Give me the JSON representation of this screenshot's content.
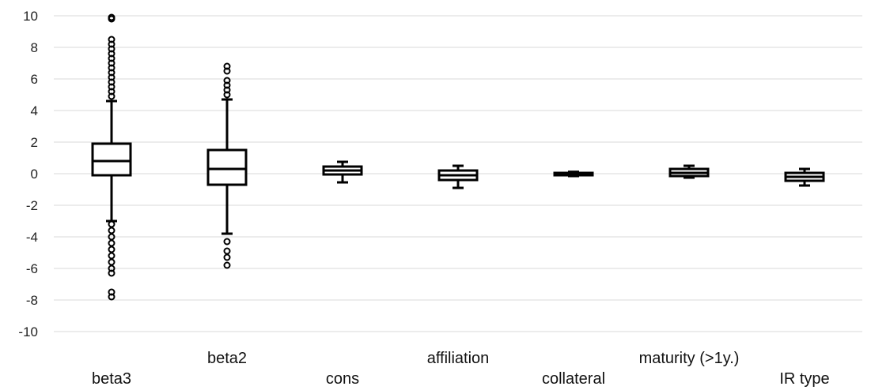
{
  "chart_data": {
    "type": "box",
    "title": "",
    "xlabel": "",
    "ylabel": "",
    "ylim": [
      -10,
      10
    ],
    "ytick_step": 2,
    "grid": true,
    "legend": "none",
    "colors": {
      "grid": "#d9d9d9",
      "box": "#000000",
      "box_fill": "#ffffff"
    },
    "categories": [
      "beta3",
      "beta2",
      "cons",
      "affiliation",
      "collateral",
      "maturity (>1y.)",
      "IR type"
    ],
    "boxes": [
      {
        "name": "beta3",
        "whisker_low": -3.0,
        "q1": -0.1,
        "median": 0.8,
        "q3": 1.9,
        "whisker_high": 4.6,
        "outliers": [
          4.9,
          5.2,
          5.5,
          5.8,
          6.1,
          6.4,
          6.7,
          7.0,
          7.3,
          7.6,
          7.9,
          8.2,
          8.5,
          9.8,
          9.9,
          -3.2,
          -3.6,
          -4.0,
          -4.4,
          -4.8,
          -5.2,
          -5.6,
          -6.0,
          -6.3,
          -7.5,
          -7.8
        ]
      },
      {
        "name": "beta2",
        "whisker_low": -3.8,
        "q1": -0.7,
        "median": 0.3,
        "q3": 1.5,
        "whisker_high": 4.7,
        "outliers": [
          5.0,
          5.3,
          5.6,
          5.9,
          6.5,
          6.8,
          -4.3,
          -4.9,
          -5.3,
          -5.8
        ]
      },
      {
        "name": "cons",
        "whisker_low": -0.55,
        "q1": -0.05,
        "median": 0.2,
        "q3": 0.45,
        "whisker_high": 0.75,
        "outliers": []
      },
      {
        "name": "affiliation",
        "whisker_low": -0.9,
        "q1": -0.4,
        "median": -0.1,
        "q3": 0.2,
        "whisker_high": 0.5,
        "outliers": []
      },
      {
        "name": "collateral",
        "whisker_low": -0.15,
        "q1": -0.1,
        "median": -0.05,
        "q3": 0.05,
        "whisker_high": 0.12,
        "outliers": []
      },
      {
        "name": "maturity (>1y.)",
        "whisker_low": -0.25,
        "q1": -0.15,
        "median": 0.05,
        "q3": 0.3,
        "whisker_high": 0.5,
        "outliers": []
      },
      {
        "name": "IR type",
        "whisker_low": -0.75,
        "q1": -0.45,
        "median": -0.2,
        "q3": 0.05,
        "whisker_high": 0.3,
        "outliers": []
      }
    ]
  }
}
